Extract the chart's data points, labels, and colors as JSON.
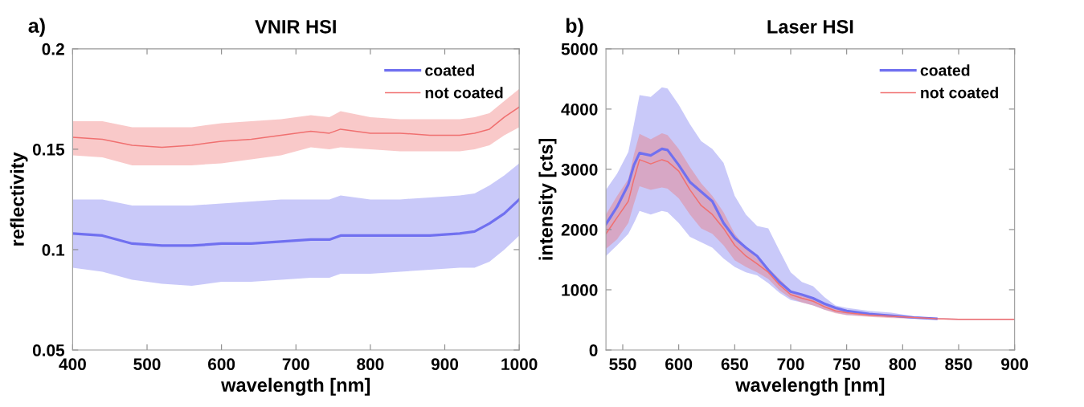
{
  "chart_data": [
    {
      "type": "line",
      "title": "VNIR HSI",
      "xlabel": "wavelength [nm]",
      "ylabel": "reflectivity",
      "annotations": [
        "a)"
      ],
      "xlim": [
        400,
        1000
      ],
      "xticks": [
        400,
        500,
        600,
        700,
        800,
        900,
        1000
      ],
      "ylim": [
        0.05,
        0.2
      ],
      "yticks": [
        0.05,
        0.1,
        0.15,
        0.2
      ],
      "grid": false,
      "legend": "top right",
      "series": [
        {
          "name": "coated",
          "color": "#7070f0",
          "x": [
            400,
            440,
            480,
            520,
            560,
            600,
            640,
            680,
            720,
            745,
            760,
            800,
            840,
            880,
            920,
            940,
            960,
            980,
            1000
          ],
          "values": [
            0.108,
            0.107,
            0.103,
            0.102,
            0.102,
            0.103,
            0.103,
            0.104,
            0.105,
            0.105,
            0.107,
            0.107,
            0.107,
            0.107,
            0.108,
            0.109,
            0.113,
            0.118,
            0.125
          ],
          "upper": [
            0.125,
            0.125,
            0.122,
            0.122,
            0.122,
            0.123,
            0.124,
            0.125,
            0.125,
            0.125,
            0.127,
            0.125,
            0.125,
            0.126,
            0.127,
            0.128,
            0.132,
            0.137,
            0.143
          ],
          "lower": [
            0.091,
            0.089,
            0.085,
            0.083,
            0.082,
            0.084,
            0.084,
            0.085,
            0.086,
            0.086,
            0.088,
            0.088,
            0.089,
            0.09,
            0.091,
            0.091,
            0.094,
            0.1,
            0.107
          ]
        },
        {
          "name": "not coated",
          "color": "#f07070",
          "x": [
            400,
            440,
            480,
            520,
            560,
            600,
            640,
            680,
            720,
            745,
            760,
            800,
            840,
            880,
            920,
            940,
            960,
            980,
            1000
          ],
          "values": [
            0.156,
            0.155,
            0.152,
            0.151,
            0.152,
            0.154,
            0.155,
            0.157,
            0.159,
            0.158,
            0.16,
            0.158,
            0.158,
            0.157,
            0.157,
            0.158,
            0.16,
            0.166,
            0.171
          ],
          "upper": [
            0.164,
            0.164,
            0.161,
            0.161,
            0.161,
            0.163,
            0.164,
            0.165,
            0.167,
            0.166,
            0.169,
            0.166,
            0.165,
            0.165,
            0.165,
            0.166,
            0.168,
            0.174,
            0.18
          ],
          "lower": [
            0.147,
            0.146,
            0.142,
            0.142,
            0.142,
            0.143,
            0.145,
            0.147,
            0.151,
            0.15,
            0.151,
            0.15,
            0.149,
            0.149,
            0.149,
            0.15,
            0.152,
            0.157,
            0.161
          ]
        }
      ]
    },
    {
      "type": "line",
      "title": "Laser HSI",
      "xlabel": "wavelength [nm]",
      "ylabel": "intensity [cts]",
      "annotations": [
        "b)"
      ],
      "xlim": [
        535,
        900
      ],
      "xticks": [
        550,
        600,
        650,
        700,
        750,
        800,
        850,
        900
      ],
      "ylim": [
        0,
        5000
      ],
      "yticks": [
        0,
        1000,
        2000,
        3000,
        4000,
        5000
      ],
      "grid": false,
      "legend": "top right",
      "series": [
        {
          "name": "coated",
          "color": "#7070f0",
          "x": [
            535,
            545,
            555,
            560,
            565,
            575,
            585,
            590,
            600,
            610,
            620,
            630,
            640,
            650,
            660,
            670,
            680,
            690,
            700,
            710,
            720,
            730,
            740,
            750,
            770,
            790,
            810,
            830,
            850,
            900
          ],
          "values": [
            2090,
            2380,
            2750,
            3070,
            3270,
            3230,
            3340,
            3320,
            3070,
            2790,
            2630,
            2470,
            2110,
            1860,
            1700,
            1560,
            1330,
            1130,
            970,
            920,
            860,
            770,
            700,
            650,
            600,
            570,
            540,
            520,
            null,
            null
          ],
          "upper": [
            2660,
            2930,
            3290,
            3750,
            4230,
            4200,
            4360,
            4340,
            4070,
            3750,
            3470,
            3340,
            3110,
            2560,
            2250,
            2060,
            2020,
            1650,
            1290,
            1130,
            1060,
            880,
            740,
            700,
            650,
            620,
            560,
            530,
            520,
            510
          ],
          "lower": [
            1560,
            1740,
            1930,
            2110,
            2310,
            2250,
            2310,
            2290,
            2110,
            1880,
            1790,
            1700,
            1520,
            1380,
            1290,
            1240,
            1110,
            950,
            830,
            790,
            740,
            670,
            620,
            580,
            560,
            540,
            520,
            510,
            500,
            500
          ]
        },
        {
          "name": "not coated",
          "color": "#f07070",
          "x": [
            535,
            545,
            555,
            560,
            565,
            575,
            585,
            590,
            600,
            610,
            620,
            630,
            640,
            650,
            660,
            670,
            680,
            690,
            700,
            710,
            720,
            730,
            740,
            750,
            770,
            790,
            810,
            830,
            850,
            900
          ],
          "values": [
            1930,
            2200,
            2470,
            2840,
            3160,
            3090,
            3160,
            3130,
            2970,
            2660,
            2400,
            2250,
            2020,
            1740,
            1560,
            1430,
            1290,
            1080,
            920,
            860,
            810,
            720,
            650,
            620,
            580,
            560,
            540,
            520,
            510,
            510
          ],
          "upper": [
            2250,
            2560,
            2840,
            3250,
            3590,
            3500,
            3600,
            3570,
            3340,
            3040,
            2770,
            2560,
            2290,
            1930,
            1700,
            1520,
            1360,
            1180,
            990,
            920,
            860,
            770,
            690,
            640,
            610,
            570,
            550,
            530,
            520,
            510
          ],
          "lower": [
            1680,
            1840,
            2110,
            2430,
            2720,
            2660,
            2700,
            2680,
            2520,
            2250,
            2020,
            1930,
            1740,
            1490,
            1380,
            1290,
            1180,
            990,
            860,
            790,
            740,
            670,
            610,
            580,
            550,
            530,
            520,
            510,
            500,
            500
          ]
        }
      ]
    }
  ]
}
